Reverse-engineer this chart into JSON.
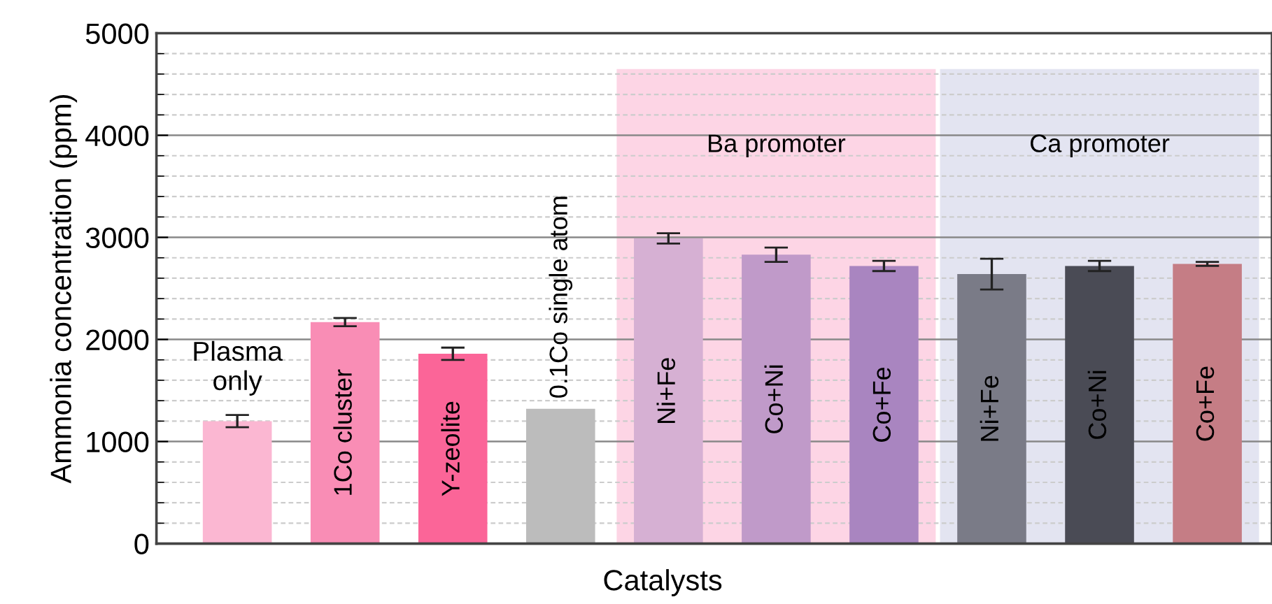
{
  "chart_data": {
    "type": "bar",
    "xlabel": "Catalysts",
    "ylabel": "Ammonia concentration (ppm)",
    "categories": [
      "Plasma\nonly",
      "1Co cluster",
      "Y-zeolite",
      "0.1Co single atom",
      "Ni+Fe",
      "Co+Ni",
      "Co+Fe",
      "Ni+Fe",
      "Co+Ni",
      "Co+Fe"
    ],
    "values": [
      1200,
      2170,
      1860,
      1320,
      2990,
      2830,
      2720,
      2640,
      2720,
      2740
    ],
    "errors": [
      60,
      40,
      60,
      null,
      50,
      70,
      50,
      150,
      50,
      20
    ],
    "colors": [
      "#fbb7d2",
      "#f98db5",
      "#fb6598",
      "#bcbcbc",
      "#d6b0d3",
      "#c09ac9",
      "#a985c0",
      "#7a7b87",
      "#4a4b55",
      "#c57d85"
    ],
    "annotations": [
      "Ba promoter",
      "Ca promoter"
    ],
    "ylim": [
      0,
      5000
    ],
    "yticks": [
      0,
      1000,
      2000,
      3000,
      4000,
      5000
    ],
    "grid": "y",
    "tick_labels": "y"
  }
}
